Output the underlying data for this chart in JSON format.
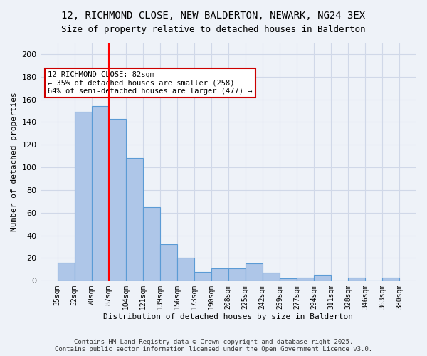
{
  "title_line1": "12, RICHMOND CLOSE, NEW BALDERTON, NEWARK, NG24 3EX",
  "title_line2": "Size of property relative to detached houses in Balderton",
  "xlabel": "Distribution of detached houses by size in Balderton",
  "ylabel": "Number of detached properties",
  "categories": [
    "35sqm",
    "52sqm",
    "70sqm",
    "87sqm",
    "104sqm",
    "121sqm",
    "139sqm",
    "156sqm",
    "173sqm",
    "190sqm",
    "208sqm",
    "225sqm",
    "242sqm",
    "259sqm",
    "277sqm",
    "294sqm",
    "311sqm",
    "328sqm",
    "346sqm",
    "363sqm",
    "380sqm"
  ],
  "values": [
    16,
    149,
    154,
    143,
    108,
    65,
    32,
    20,
    8,
    11,
    11,
    15,
    7,
    2,
    3,
    5,
    0,
    3,
    0,
    3
  ],
  "bar_color": "#aec6e8",
  "bar_edge_color": "#5b9bd5",
  "grid_color": "#d0d8e8",
  "background_color": "#eef2f8",
  "red_line_x": 2.5,
  "annotation_text": "12 RICHMOND CLOSE: 82sqm\n← 35% of detached houses are smaller (258)\n64% of semi-detached houses are larger (477) →",
  "annotation_box_color": "#ffffff",
  "annotation_box_edge": "#cc0000",
  "footer_line1": "Contains HM Land Registry data © Crown copyright and database right 2025.",
  "footer_line2": "Contains public sector information licensed under the Open Government Licence v3.0.",
  "ylim": [
    0,
    210
  ],
  "yticks": [
    0,
    20,
    40,
    60,
    80,
    100,
    120,
    140,
    160,
    180,
    200
  ]
}
